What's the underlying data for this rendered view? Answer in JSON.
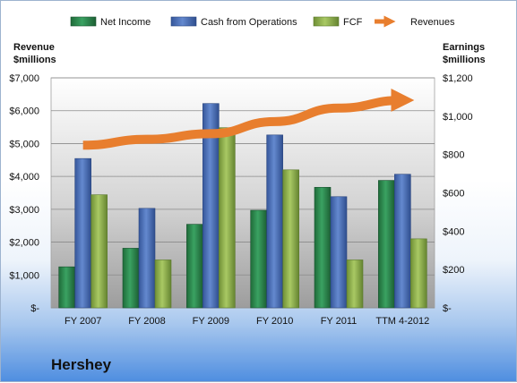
{
  "company": "Hershey",
  "colors": {
    "net_income": "#2e8b4e",
    "cash_from_operations": "#4a6fb5",
    "fcf": "#8fb04a",
    "revenues": "#e87e2e"
  },
  "chart_data": {
    "type": "bar",
    "categories": [
      "FY 2007",
      "FY 2008",
      "FY 2009",
      "FY 2010",
      "FY 2011",
      "TTM 4-2012"
    ],
    "series": [
      {
        "name": "Net Income",
        "axis": "right",
        "values": [
          214,
          311,
          436,
          509,
          629,
          665
        ]
      },
      {
        "name": "Cash from Operations",
        "axis": "right",
        "values": [
          779,
          519,
          1066,
          902,
          580,
          697
        ]
      },
      {
        "name": "FCF",
        "axis": "right",
        "values": [
          590,
          250,
          940,
          720,
          250,
          360
        ]
      }
    ],
    "line_series": {
      "name": "Revenues",
      "axis": "left",
      "values": [
        4950,
        5130,
        5300,
        5670,
        6080,
        6320
      ]
    },
    "left_axis": {
      "title_lines": [
        "Revenue",
        "$millions"
      ],
      "ylim": [
        0,
        7000
      ],
      "ticks": [
        0,
        1000,
        2000,
        3000,
        4000,
        5000,
        6000,
        7000
      ],
      "tick_labels": [
        "$-",
        "$1,000",
        "$2,000",
        "$3,000",
        "$4,000",
        "$5,000",
        "$6,000",
        "$7,000"
      ]
    },
    "right_axis": {
      "title_lines": [
        "Earnings",
        "$millions"
      ],
      "ylim": [
        0,
        1200
      ],
      "ticks": [
        0,
        200,
        400,
        600,
        800,
        1000,
        1200
      ],
      "tick_labels": [
        "$-",
        "$200",
        "$400",
        "$600",
        "$800",
        "$1,000",
        "$1,200"
      ]
    },
    "legend": {
      "position": "top",
      "entries": [
        "Net Income",
        "Cash from Operations",
        "FCF",
        "Revenues"
      ]
    },
    "grid": true
  }
}
